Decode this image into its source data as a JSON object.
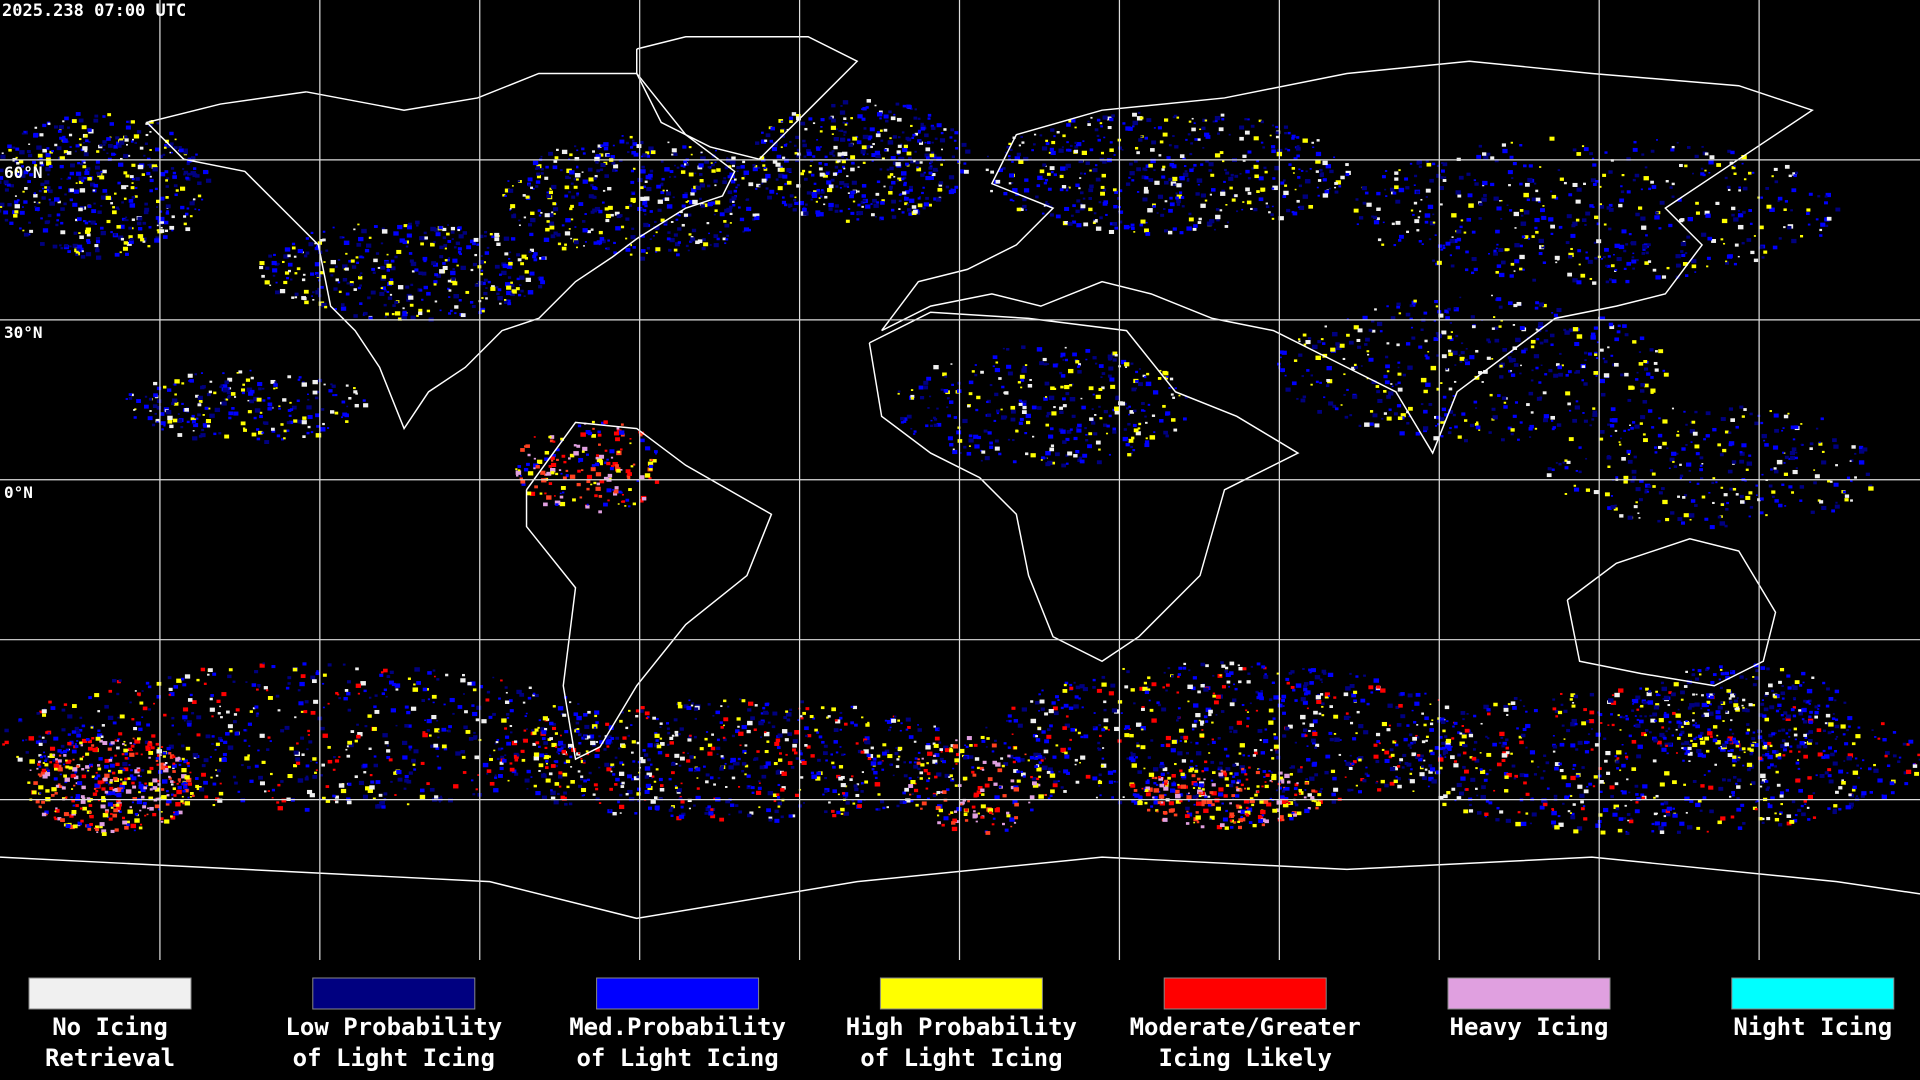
{
  "header": {
    "timestamp": "2025.238 07:00 UTC"
  },
  "map": {
    "latitude_labels": [
      "60°N",
      "30°N",
      "0°N"
    ]
  },
  "legend": [
    {
      "lines": [
        "No Icing",
        "Retrieval"
      ],
      "color": "#f0f0f0"
    },
    {
      "lines": [
        "Low Probability",
        "of Light Icing"
      ],
      "color": "#000080"
    },
    {
      "lines": [
        "Med.Probability",
        "of Light Icing"
      ],
      "color": "#0000ff"
    },
    {
      "lines": [
        "High Probability",
        "of Light Icing"
      ],
      "color": "#ffff00"
    },
    {
      "lines": [
        "Moderate/Greater",
        "Icing Likely"
      ],
      "color": "#ff0000"
    },
    {
      "lines": [
        "Heavy Icing"
      ],
      "color": "#e0a0e0"
    },
    {
      "lines": [
        "Night Icing"
      ],
      "color": "#00ffff"
    }
  ]
}
